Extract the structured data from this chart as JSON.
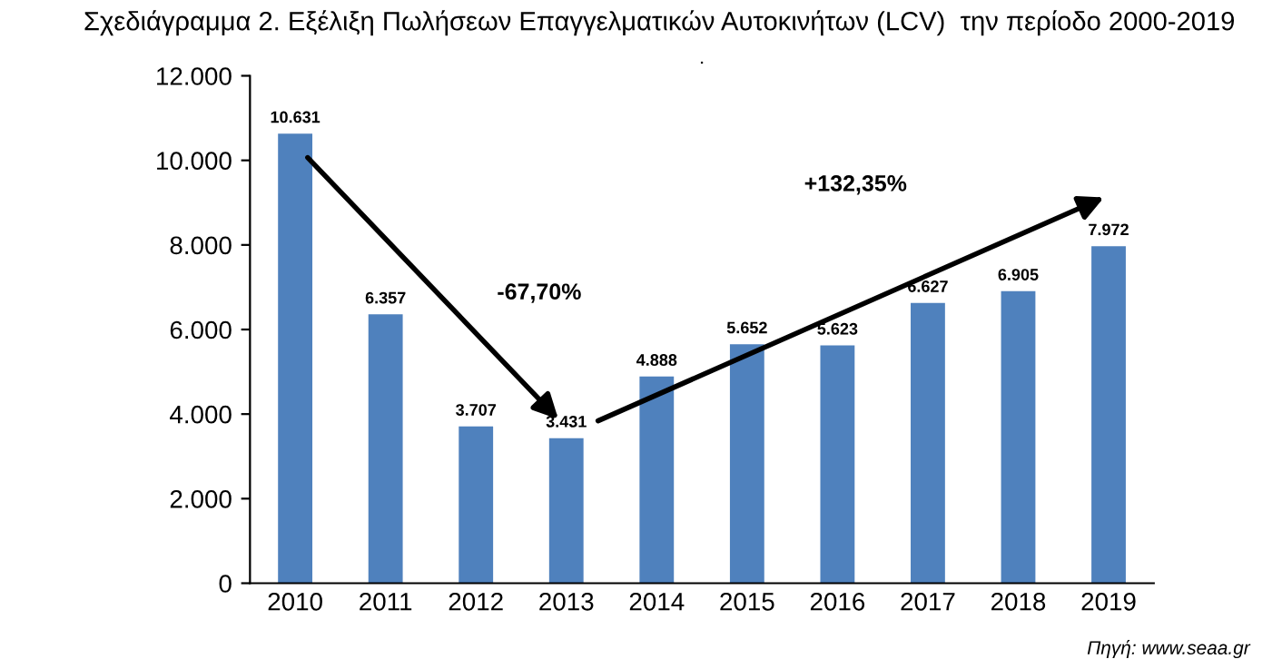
{
  "chart_data": {
    "type": "bar",
    "title": "Σχεδιάγραμμα 2. Εξέλιξη Πωλήσεων Επαγγελματικών Αυτοκινήτων (LCV)  την περίοδο 2000-2019",
    "categories": [
      "2010",
      "2011",
      "2012",
      "2013",
      "2014",
      "2015",
      "2016",
      "2017",
      "2018",
      "2019"
    ],
    "values": [
      10631,
      6357,
      3707,
      3431,
      4888,
      5652,
      5623,
      6627,
      6905,
      7972
    ],
    "value_labels": [
      "10.631",
      "6.357",
      "3.707",
      "3.431",
      "4.888",
      "5.652",
      "5.623",
      "6.627",
      "6.905",
      "7.972"
    ],
    "color": "#4f81bd",
    "ylim": [
      0,
      12000
    ],
    "yticks": [
      {
        "value": 0,
        "label": "0"
      },
      {
        "value": 2000,
        "label": "2.000"
      },
      {
        "value": 4000,
        "label": "4.000"
      },
      {
        "value": 6000,
        "label": "6.000"
      },
      {
        "value": 8000,
        "label": "8.000"
      },
      {
        "value": 10000,
        "label": "10.000"
      },
      {
        "value": 12000,
        "label": "12.000"
      }
    ],
    "grid": false,
    "legend": false,
    "annotations": [
      "-67,70%",
      "+132,35%",
      "Πηγή: www.seaa.gr"
    ]
  }
}
